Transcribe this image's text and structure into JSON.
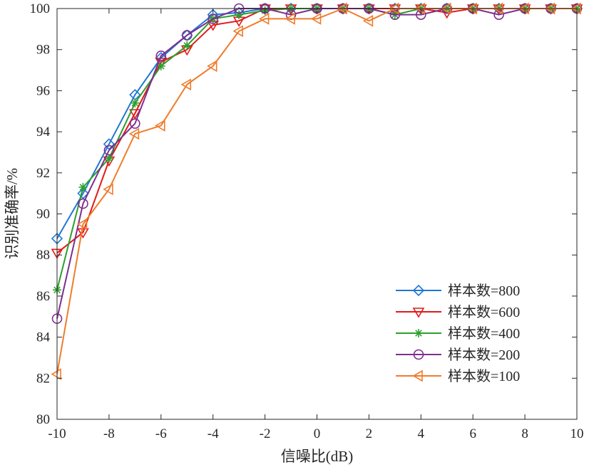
{
  "chart_data": {
    "type": "line",
    "title": "",
    "xlabel": "信噪比(dB)",
    "ylabel": "识别准确率/%",
    "xlim": [
      -10,
      10
    ],
    "ylim": [
      80,
      100
    ],
    "xticks": [
      "-10",
      "-8",
      "-6",
      "-4",
      "-2",
      "0",
      "2",
      "4",
      "6",
      "8",
      "10"
    ],
    "yticks": [
      "80",
      "82",
      "84",
      "86",
      "88",
      "90",
      "92",
      "94",
      "96",
      "98",
      "100"
    ],
    "grid": false,
    "legend_position": "bottom-right",
    "x": [
      -10,
      -9,
      -8,
      -7,
      -6,
      -5,
      -4,
      -3,
      -2,
      -1,
      0,
      1,
      2,
      3,
      4,
      5,
      6,
      7,
      8,
      9,
      10
    ],
    "series": [
      {
        "name": "样本数=800",
        "color": "#1f77d4",
        "marker": "diamond",
        "values": [
          88.8,
          91.0,
          93.4,
          95.8,
          97.6,
          98.7,
          99.7,
          99.8,
          100,
          100,
          100,
          100,
          100,
          100,
          100,
          100,
          100,
          100,
          100,
          100,
          100
        ]
      },
      {
        "name": "样本数=600",
        "color": "#e21a1a",
        "marker": "triangle-down",
        "values": [
          88.1,
          89.1,
          92.6,
          94.9,
          97.4,
          98.0,
          99.2,
          99.4,
          100,
          100,
          100,
          100,
          100,
          100,
          100,
          99.8,
          100,
          100,
          100,
          100,
          100
        ]
      },
      {
        "name": "样本数=400",
        "color": "#2ca02c",
        "marker": "star",
        "values": [
          86.3,
          91.3,
          92.7,
          95.4,
          97.2,
          98.2,
          99.5,
          99.7,
          99.9,
          100,
          100,
          100,
          100,
          99.7,
          100,
          100,
          100,
          100,
          100,
          100,
          100
        ]
      },
      {
        "name": "样本数=200",
        "color": "#7e2f8e",
        "marker": "circle",
        "values": [
          84.9,
          90.5,
          93.1,
          94.4,
          97.7,
          98.7,
          99.5,
          100,
          100,
          99.7,
          100,
          100,
          100,
          99.7,
          99.7,
          100,
          100,
          99.7,
          100,
          100,
          100
        ]
      },
      {
        "name": "样本数=100",
        "color": "#f07c2b",
        "marker": "triangle-left",
        "values": [
          82.2,
          89.5,
          91.2,
          93.9,
          94.3,
          96.3,
          97.2,
          98.9,
          99.5,
          99.5,
          99.5,
          100,
          99.4,
          100,
          100,
          100,
          100,
          100,
          100,
          100,
          100
        ]
      }
    ]
  }
}
